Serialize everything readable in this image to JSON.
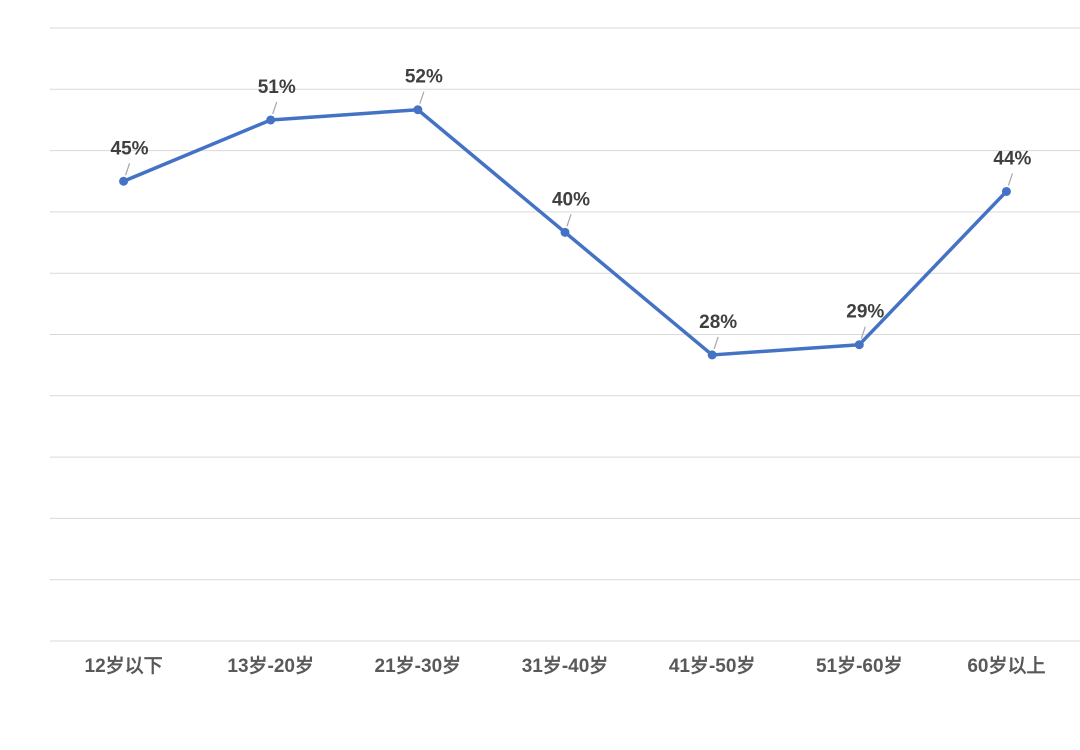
{
  "chart_data": {
    "type": "line",
    "categories": [
      "12岁以下",
      "13岁-20岁",
      "21岁-30岁",
      "31岁-40岁",
      "41岁-50岁",
      "51岁-60岁",
      "60岁以上"
    ],
    "series": [
      {
        "color": "#4472c4",
        "values": [
          45,
          51,
          52,
          40,
          28,
          29,
          44
        ],
        "value_labels": [
          "45%",
          "51%",
          "52%",
          "40%",
          "28%",
          "29%",
          "44%"
        ]
      }
    ],
    "ylim": [
      0,
      60
    ],
    "yticks": [
      0,
      6,
      12,
      18,
      24,
      30,
      36,
      42,
      48,
      54,
      60
    ],
    "ytick_labels": false,
    "grid": true
  }
}
